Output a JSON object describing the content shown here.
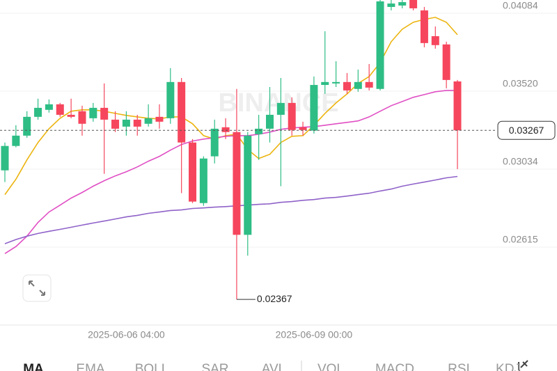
{
  "chart_data": {
    "type": "candlestick",
    "log_scale": true,
    "grid": true,
    "up_color": "#2ebd85",
    "down_color": "#f6465d",
    "watermark": "BINANCE",
    "categories": [
      null,
      null,
      null,
      null,
      null,
      null,
      null,
      null,
      null,
      null,
      null,
      "2025-06-06 04:00",
      null,
      null,
      null,
      null,
      null,
      null,
      null,
      null,
      null,
      null,
      null,
      null,
      null,
      null,
      null,
      null,
      "2025-06-09 00:00",
      null,
      null,
      null,
      null,
      null,
      null,
      null,
      null,
      null,
      null,
      null,
      null,
      null
    ],
    "open": [
      0.03027,
      0.03171,
      0.03234,
      0.03352,
      0.03397,
      0.03433,
      0.03365,
      0.03388,
      0.03343,
      0.0341,
      0.03334,
      0.0329,
      0.03334,
      0.03308,
      0.03352,
      0.03343,
      0.03582,
      0.03192,
      0.02844,
      0.03109,
      0.03286,
      0.03256,
      0.02677,
      0.03243,
      0.03277,
      0.03365,
      0.03442,
      0.03286,
      0.03265,
      0.03562,
      0.03572,
      0.03582,
      0.03535,
      0.03582,
      0.03535,
      0.04133,
      0.04144,
      0.04188,
      0.04106,
      0.03909,
      0.03848,
      0.03586
    ],
    "high": [
      0.03192,
      0.03299,
      0.03388,
      0.0347,
      0.03465,
      0.03442,
      0.0347,
      0.03424,
      0.03442,
      0.03572,
      0.03388,
      0.03388,
      0.03365,
      0.03433,
      0.03433,
      0.03678,
      0.0361,
      0.03213,
      0.03109,
      0.03334,
      0.03343,
      0.03535,
      0.03256,
      0.03365,
      0.03548,
      0.0361,
      0.03479,
      0.03321,
      0.0362,
      0.03946,
      0.03727,
      0.03644,
      0.03668,
      0.03707,
      0.04188,
      0.04188,
      0.04188,
      0.04188,
      0.04133,
      0.03982,
      0.03868,
      0.03596
    ],
    "low": [
      0.0296,
      0.03163,
      0.03221,
      0.03334,
      0.03379,
      0.03352,
      0.03343,
      0.03234,
      0.03321,
      0.03007,
      0.03256,
      0.03234,
      0.03234,
      0.0329,
      0.03277,
      0.03308,
      0.02898,
      0.02844,
      0.02829,
      0.03067,
      0.03213,
      0.02367,
      0.02573,
      0.03088,
      0.03192,
      0.02937,
      0.03234,
      0.03234,
      0.03247,
      0.03502,
      0.03548,
      0.03502,
      0.03516,
      0.03525,
      0.03525,
      0.04106,
      0.04122,
      0.04106,
      0.03827,
      0.03817,
      0.03539,
      0.03034
    ],
    "close": [
      0.03171,
      0.03234,
      0.03352,
      0.0341,
      0.03433,
      0.03365,
      0.03352,
      0.03308,
      0.0341,
      0.03334,
      0.03277,
      0.03334,
      0.0329,
      0.03343,
      0.03321,
      0.03582,
      0.03192,
      0.02852,
      0.03096,
      0.03277,
      0.03256,
      0.02677,
      0.03234,
      0.03277,
      0.03365,
      0.03442,
      0.03269,
      0.03269,
      0.03562,
      0.03582,
      0.03582,
      0.03525,
      0.03582,
      0.03544,
      0.04177,
      0.0416,
      0.04171,
      0.04122,
      0.03858,
      0.03843,
      0.03596,
      0.03267
    ],
    "series": [
      {
        "color": "#ecb40f",
        "values": [
          0.0289,
          0.02976,
          0.03088,
          0.03192,
          0.03277,
          0.03343,
          0.03388,
          0.03397,
          0.03397,
          0.03388,
          0.03374,
          0.03361,
          0.03352,
          0.03343,
          0.03339,
          0.03352,
          0.03352,
          0.03308,
          0.03234,
          0.03213,
          0.03234,
          0.03243,
          0.0315,
          0.03096,
          0.03121,
          0.03192,
          0.0323,
          0.03234,
          0.03299,
          0.03374,
          0.03442,
          0.03502,
          0.03572,
          0.0362,
          0.03717,
          0.03868,
          0.03961,
          0.04014,
          0.04036,
          0.04052,
          0.04014,
          0.0392
        ]
      },
      {
        "color": "#e04fc4",
        "values": [
          0.02583,
          0.02618,
          0.0267,
          0.02741,
          0.02796,
          0.02833,
          0.02871,
          0.02902,
          0.02937,
          0.02968,
          0.02995,
          0.03019,
          0.03047,
          0.0308,
          0.03109,
          0.03146,
          0.0318,
          0.03201,
          0.03213,
          0.03221,
          0.0323,
          0.03234,
          0.03234,
          0.03243,
          0.03256,
          0.03273,
          0.03282,
          0.03286,
          0.0329,
          0.03299,
          0.03308,
          0.03317,
          0.03326,
          0.03352,
          0.03388,
          0.03424,
          0.03451,
          0.03479,
          0.03497,
          0.03516,
          0.03525,
          0.03525
        ]
      },
      {
        "color": "#8f62c9",
        "values": [
          0.02632,
          0.02653,
          0.0267,
          0.02684,
          0.02695,
          0.02705,
          0.02716,
          0.02727,
          0.02738,
          0.02748,
          0.02759,
          0.0277,
          0.02778,
          0.02789,
          0.02796,
          0.02804,
          0.02807,
          0.02815,
          0.02818,
          0.02822,
          0.02825,
          0.02829,
          0.02833,
          0.02837,
          0.0284,
          0.02848,
          0.02852,
          0.02859,
          0.02863,
          0.02871,
          0.02875,
          0.02882,
          0.0289,
          0.02898,
          0.0291,
          0.02921,
          0.02937,
          0.02949,
          0.0296,
          0.02972,
          0.02984,
          0.02992
        ]
      }
    ],
    "ylim": [
      0.0226,
      0.04188
    ],
    "yticks": [
      0.04084,
      {
        "value": 0.0352,
        "label": "0.03520"
      },
      0.03034,
      0.02615
    ],
    "price_line": 0.03267,
    "min_annotation": 0.02367
  },
  "indicator_tabs": [
    "MA",
    "EMA",
    "BOLL",
    "SAR",
    "AVL",
    "VOL",
    "MACD",
    "RSI",
    "KDJ"
  ]
}
